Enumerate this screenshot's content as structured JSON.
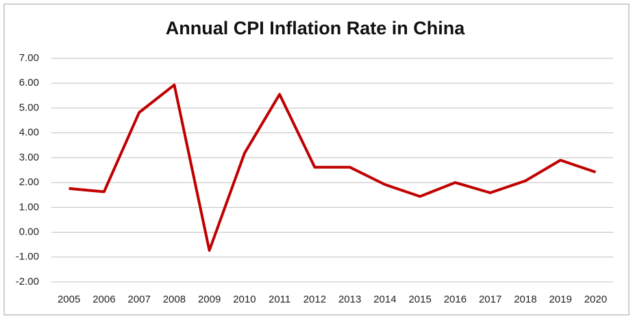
{
  "chart_data": {
    "type": "line",
    "title": "Annual CPI Inflation Rate in China",
    "categories": [
      "2005",
      "2006",
      "2007",
      "2008",
      "2009",
      "2010",
      "2011",
      "2012",
      "2013",
      "2014",
      "2015",
      "2016",
      "2017",
      "2018",
      "2019",
      "2020"
    ],
    "values": [
      1.76,
      1.63,
      4.82,
      5.93,
      -0.73,
      3.18,
      5.55,
      2.62,
      2.62,
      1.92,
      1.44,
      2.0,
      1.59,
      2.07,
      2.9,
      2.42
    ],
    "color": "#c00000",
    "ylim": [
      -2,
      7
    ],
    "yticks": [
      {
        "value": -2,
        "label": "-2.00"
      },
      {
        "value": -1,
        "label": "-1.00"
      },
      {
        "value": 0,
        "label": "0.00"
      },
      {
        "value": 1,
        "label": "1.00"
      },
      {
        "value": 2,
        "label": "2.00"
      },
      {
        "value": 3,
        "label": "3.00"
      },
      {
        "value": 4,
        "label": "4.00"
      },
      {
        "value": 5,
        "label": "5.00"
      },
      {
        "value": 6,
        "label": "6.00"
      },
      {
        "value": 7,
        "label": "7.00"
      }
    ],
    "grid": true
  }
}
